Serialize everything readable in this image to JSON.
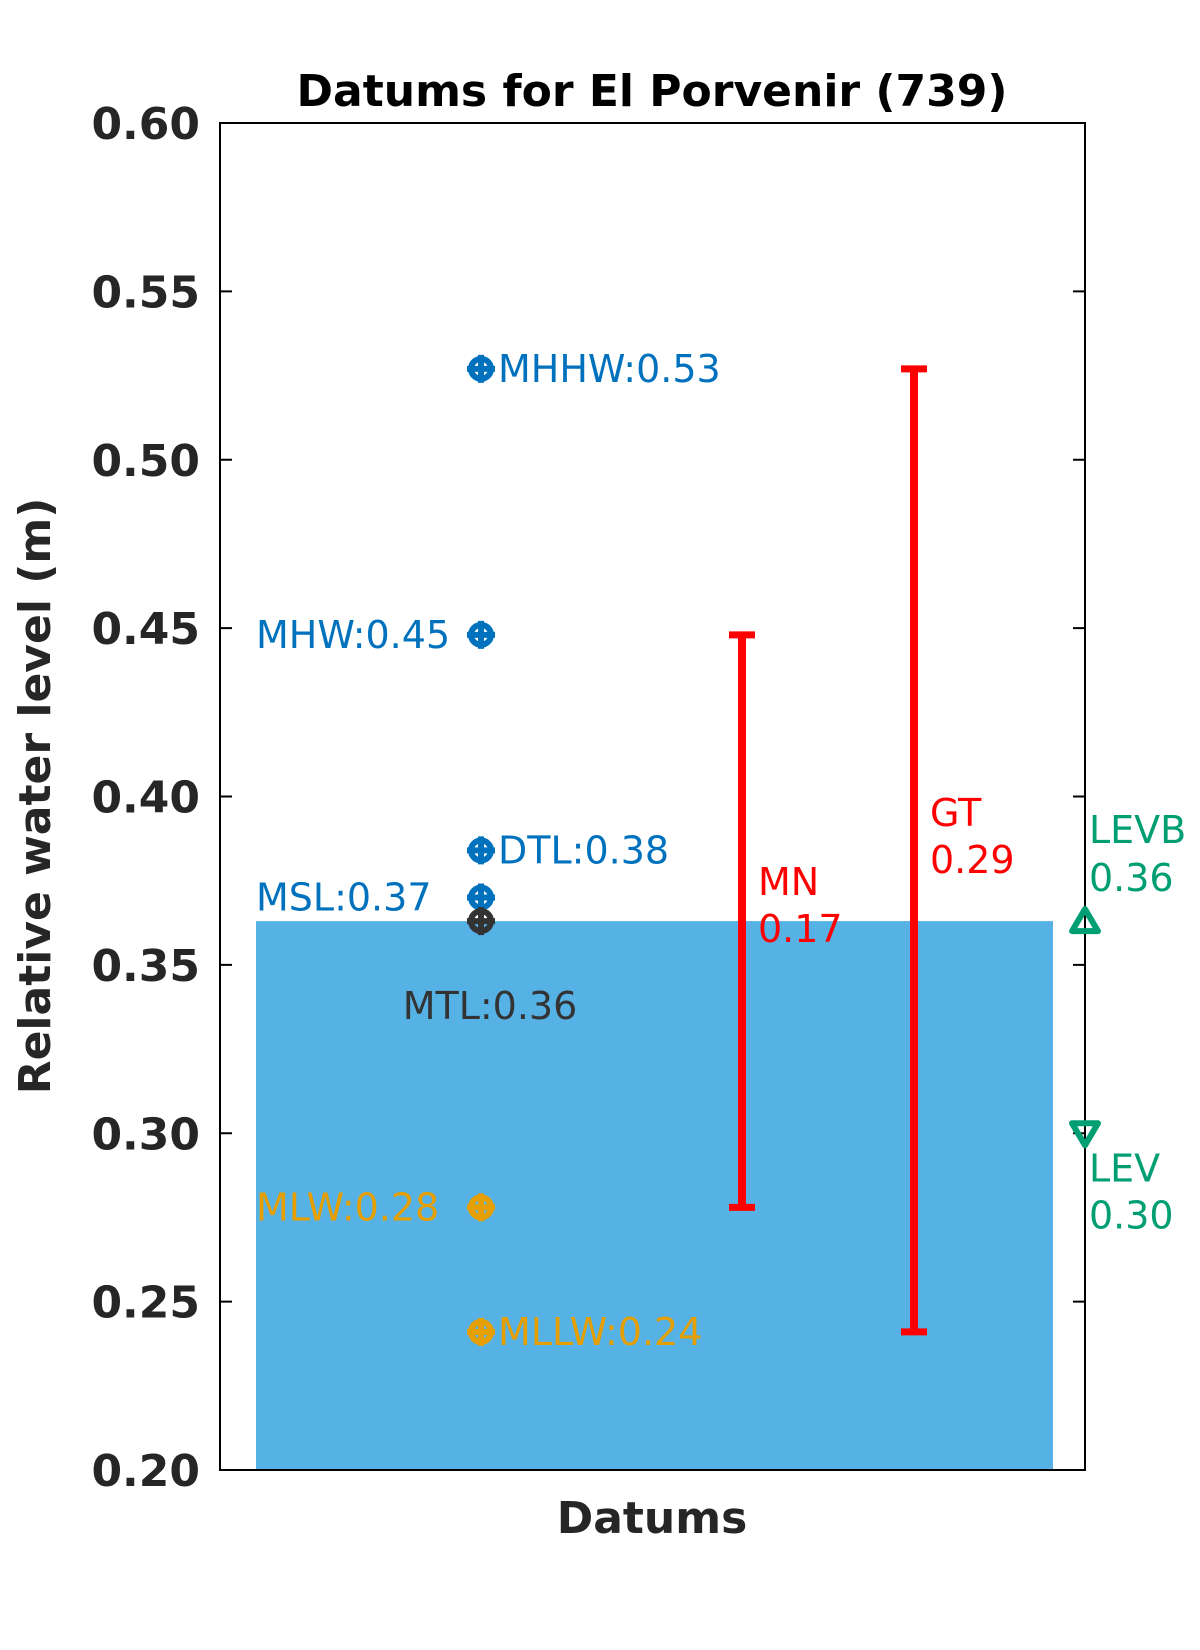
{
  "chart_data": {
    "type": "scatter",
    "title": "Datums for El Porvenir (739)",
    "xlabel": "Datums",
    "ylabel": "Relative water level (m)",
    "ylim": [
      0.2,
      0.6
    ],
    "yticks": [
      "0.20",
      "0.25",
      "0.30",
      "0.35",
      "0.40",
      "0.45",
      "0.50",
      "0.55",
      "0.60"
    ],
    "grid": false,
    "shaded_level": {
      "value": 0.363,
      "color": "#56B1E5"
    },
    "datums": [
      {
        "name": "MHHW",
        "value": 0.527,
        "label": "MHHW:0.53",
        "color": "#0072BD",
        "label_side": "right"
      },
      {
        "name": "MHW",
        "value": 0.448,
        "label": "MHW:0.45",
        "color": "#0072BD",
        "label_side": "left"
      },
      {
        "name": "DTL",
        "value": 0.384,
        "label": "DTL:0.38",
        "color": "#0072BD",
        "label_side": "right"
      },
      {
        "name": "MSL",
        "value": 0.37,
        "label": "MSL:0.37",
        "color": "#0072BD",
        "label_side": "left"
      },
      {
        "name": "MTL",
        "value": 0.363,
        "label": "MTL:0.36",
        "color": "#333333",
        "label_side": "below"
      },
      {
        "name": "MLW",
        "value": 0.278,
        "label": "MLW:0.28",
        "color": "#E69F00",
        "label_side": "left"
      },
      {
        "name": "MLLW",
        "value": 0.241,
        "label": "MLLW:0.24",
        "color": "#E69F00",
        "label_side": "right"
      }
    ],
    "ranges": [
      {
        "name": "MN",
        "value_label": "0.17",
        "low": 0.278,
        "high": 0.448,
        "color": "#FF0000"
      },
      {
        "name": "GT",
        "value_label": "0.29",
        "low": 0.241,
        "high": 0.527,
        "color": "#FF0000"
      }
    ],
    "levels": [
      {
        "name": "LEVB",
        "value_label": "0.36",
        "value": 0.363,
        "marker": "triangle-up",
        "color": "#009E73"
      },
      {
        "name": "LEV",
        "value_label": "0.30",
        "value": 0.3,
        "marker": "triangle-down",
        "color": "#009E73"
      }
    ]
  }
}
